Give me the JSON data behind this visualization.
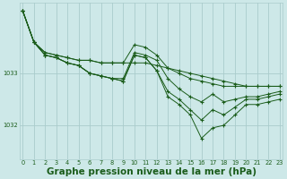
{
  "bg_color": "#cde8e8",
  "grid_color": "#aacccc",
  "line_color": "#1a5c1a",
  "marker_color": "#1a5c1a",
  "xlabel": "Graphe pression niveau de la mer (hPa)",
  "xlabel_fontsize": 7.5,
  "ytick_labels": [
    "1032",
    "1033"
  ],
  "ytick_values": [
    1032.0,
    1033.0
  ],
  "ylim": [
    1031.35,
    1034.35
  ],
  "xlim": [
    -0.3,
    23.3
  ],
  "series": [
    {
      "x": [
        0,
        1,
        2,
        3,
        4,
        5,
        6,
        7,
        8,
        9,
        10,
        11,
        12,
        13,
        14,
        15,
        16,
        17,
        18,
        19,
        20,
        21,
        22,
        23
      ],
      "y": [
        1034.2,
        1033.6,
        1033.4,
        1033.35,
        1033.3,
        1033.25,
        1033.25,
        1033.2,
        1033.2,
        1033.2,
        1033.2,
        1033.2,
        1033.15,
        1033.1,
        1033.05,
        1033.0,
        1032.95,
        1032.9,
        1032.85,
        1032.8,
        1032.75,
        1032.75,
        1032.75,
        1032.75
      ]
    },
    {
      "x": [
        0,
        1,
        2,
        3,
        4,
        5,
        6,
        7,
        8,
        9,
        10,
        11,
        12,
        13,
        14,
        15,
        16,
        17,
        18,
        19,
        20,
        21,
        22,
        23
      ],
      "y": [
        1034.2,
        1033.6,
        1033.4,
        1033.35,
        1033.3,
        1033.25,
        1033.25,
        1033.2,
        1033.2,
        1033.2,
        1033.55,
        1033.5,
        1033.35,
        1033.1,
        1033.0,
        1032.9,
        1032.85,
        1032.8,
        1032.75,
        1032.75,
        1032.75,
        1032.75,
        1032.75,
        1032.75
      ]
    },
    {
      "x": [
        0,
        1,
        2,
        3,
        4,
        5,
        6,
        7,
        8,
        9,
        10,
        11,
        12,
        13,
        14,
        15,
        16,
        17,
        18,
        19,
        20,
        21,
        22,
        23
      ],
      "y": [
        1034.2,
        1033.6,
        1033.35,
        1033.3,
        1033.2,
        1033.15,
        1033.0,
        1032.95,
        1032.9,
        1032.9,
        1033.4,
        1033.35,
        1033.25,
        1032.9,
        1032.7,
        1032.55,
        1032.45,
        1032.6,
        1032.45,
        1032.5,
        1032.55,
        1032.55,
        1032.6,
        1032.65
      ]
    },
    {
      "x": [
        0,
        1,
        2,
        3,
        4,
        5,
        6,
        7,
        8,
        9,
        10,
        11,
        12,
        13,
        14,
        15,
        16,
        17,
        18,
        19,
        20,
        21,
        22,
        23
      ],
      "y": [
        1034.2,
        1033.6,
        1033.35,
        1033.3,
        1033.2,
        1033.15,
        1033.0,
        1032.95,
        1032.9,
        1032.85,
        1033.35,
        1033.3,
        1033.05,
        1032.65,
        1032.5,
        1032.3,
        1032.1,
        1032.3,
        1032.2,
        1032.35,
        1032.5,
        1032.5,
        1032.55,
        1032.6
      ]
    },
    {
      "x": [
        0,
        1,
        2,
        3,
        4,
        5,
        6,
        7,
        8,
        9,
        10,
        11,
        12,
        13,
        14,
        15,
        16,
        17,
        18,
        19,
        20,
        21,
        22,
        23
      ],
      "y": [
        1034.2,
        1033.6,
        1033.35,
        1033.3,
        1033.2,
        1033.15,
        1033.0,
        1032.95,
        1032.9,
        1032.85,
        1033.35,
        1033.3,
        1033.05,
        1032.55,
        1032.4,
        1032.2,
        1031.75,
        1031.95,
        1032.0,
        1032.2,
        1032.4,
        1032.4,
        1032.45,
        1032.5
      ]
    }
  ],
  "figsize": [
    3.2,
    2.0
  ],
  "dpi": 100
}
